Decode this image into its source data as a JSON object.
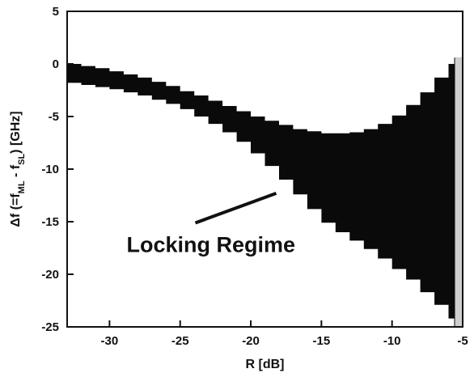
{
  "chart_data": {
    "type": "area",
    "title": "",
    "xlabel": "R [dB]",
    "ylabel": "Δf (=f_ML − f_SL) [GHz]",
    "ylabel_parts": {
      "main": "Δf (=f",
      "sub1": "ML",
      "mid": " - f",
      "sub2": "SL",
      "end": ") [GHz]"
    },
    "xlim": [
      -33,
      -5
    ],
    "ylim": [
      -25,
      5
    ],
    "x_ticks": [
      -30,
      -25,
      -20,
      -15,
      -10,
      -5
    ],
    "x_tick_labels": [
      "-30",
      "-25",
      "-20",
      "-15",
      "-10",
      "-5"
    ],
    "y_ticks": [
      5,
      0,
      -5,
      -10,
      -15,
      -20,
      -25
    ],
    "y_tick_labels": [
      "5",
      "0",
      "-5",
      "-10",
      "-15",
      "-20",
      "-25"
    ],
    "grid": false,
    "series": [
      {
        "region": "locking-regime",
        "x": [
          -33,
          -32,
          -31,
          -30,
          -29,
          -28,
          -27,
          -26,
          -25,
          -24,
          -23,
          -22,
          -21,
          -20,
          -19,
          -18,
          -17,
          -16,
          -15,
          -14,
          -13,
          -12,
          -11,
          -10,
          -9,
          -8,
          -7,
          -6,
          -5.6
        ],
        "upper": [
          0,
          -0.2,
          -0.4,
          -0.7,
          -1.0,
          -1.3,
          -1.7,
          -2.1,
          -2.6,
          -3.0,
          -3.5,
          -4.0,
          -4.5,
          -5.0,
          -5.4,
          -5.8,
          -6.2,
          -6.4,
          -6.6,
          -6.6,
          -6.5,
          -6.2,
          -5.7,
          -4.9,
          -3.9,
          -2.7,
          -1.3,
          0.0,
          0.6
        ],
        "lower": [
          -1.8,
          -2.0,
          -2.2,
          -2.4,
          -2.7,
          -3.0,
          -3.4,
          -3.8,
          -4.3,
          -5.0,
          -5.7,
          -6.5,
          -7.4,
          -8.5,
          -9.7,
          -11.0,
          -12.4,
          -13.8,
          -15.1,
          -16.0,
          -16.8,
          -17.6,
          -18.5,
          -19.5,
          -20.5,
          -21.7,
          -22.9,
          -24.2,
          -25.0
        ]
      }
    ],
    "annotations": [
      {
        "text": "Locking Regime",
        "x": -26.5,
        "y": -16.5,
        "arrow_to": [
          -18.2,
          -12.3
        ]
      }
    ]
  },
  "colors": {
    "fill": "#0a0a0a",
    "edge_band": "#cfcfcf",
    "axis": "#111111",
    "background": "#ffffff"
  }
}
